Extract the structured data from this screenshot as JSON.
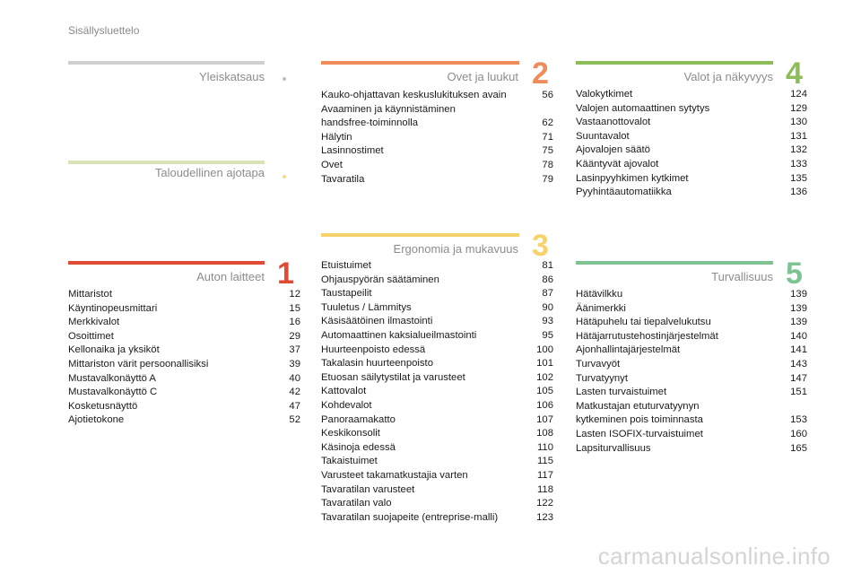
{
  "header": {
    "title": "Sisällysluettelo"
  },
  "colors": {
    "grey": "#d0d0d0",
    "light_green": "#d7e3b4",
    "red": "#e14a34",
    "orange": "#f08b5a",
    "yellow": "#f6d36a",
    "green": "#8ebc5a",
    "teal_green": "#7dc393",
    "bullet_grey": "#bdbdbd",
    "bullet_yellow": "#f2dc8a"
  },
  "sections": {
    "yleiskatsaus": {
      "title": "Yleiskatsaus"
    },
    "taloudellinen": {
      "title": "Taloudellinen ajotapa"
    },
    "auton_laitteet": {
      "title": "Auton laitteet",
      "number": "1",
      "entries": [
        {
          "label": "Mittaristot",
          "page": "12"
        },
        {
          "label": "Käyntinopeusmittari",
          "page": "15"
        },
        {
          "label": "Merkkivalot",
          "page": "16"
        },
        {
          "label": "Osoittimet",
          "page": "29"
        },
        {
          "label": "Kellonaika ja yksiköt",
          "page": "37"
        },
        {
          "label": "Mittariston värit persoonallisiksi",
          "page": "39"
        },
        {
          "label": "Mustavalkonäyttö A",
          "page": "40"
        },
        {
          "label": "Mustavalkonäyttö C",
          "page": "42"
        },
        {
          "label": "Kosketusnäyttö",
          "page": "47"
        },
        {
          "label": "Ajotietokone",
          "page": "52"
        }
      ]
    },
    "ovet": {
      "title": "Ovet ja luukut",
      "number": "2",
      "entries": [
        {
          "label": "Kauko-ohjattavan keskuslukituksen avain",
          "page": "56"
        },
        {
          "label": "Avaaminen ja käynnistäminen\n   handsfree-toiminnolla",
          "page": "62"
        },
        {
          "label": "Hälytin",
          "page": "71"
        },
        {
          "label": "Lasinnostimet",
          "page": "75"
        },
        {
          "label": "Ovet",
          "page": "78"
        },
        {
          "label": "Tavaratila",
          "page": "79"
        }
      ]
    },
    "ergonomia": {
      "title": "Ergonomia ja mukavuus",
      "number": "3",
      "entries": [
        {
          "label": "Etuistuimet",
          "page": "81"
        },
        {
          "label": "Ohjauspyörän säätäminen",
          "page": "86"
        },
        {
          "label": "Taustapeilit",
          "page": "87"
        },
        {
          "label": "Tuuletus / Lämmitys",
          "page": "90"
        },
        {
          "label": "Käsisäätöinen ilmastointi",
          "page": "93"
        },
        {
          "label": "Automaattinen kaksialueilmastointi",
          "page": "95"
        },
        {
          "label": "Huurteenpoisto edessä",
          "page": "100"
        },
        {
          "label": "Takalasin huurteenpoisto",
          "page": "101"
        },
        {
          "label": "Etuosan säilytystilat ja varusteet",
          "page": "102"
        },
        {
          "label": "Kattovalot",
          "page": "105"
        },
        {
          "label": "Kohdevalot",
          "page": "106"
        },
        {
          "label": "Panoraamakatto",
          "page": "107"
        },
        {
          "label": "Keskikonsolit",
          "page": "108"
        },
        {
          "label": "Käsinoja edessä",
          "page": "110"
        },
        {
          "label": "Takaistuimet",
          "page": "115"
        },
        {
          "label": "Varusteet takamatkustajia varten",
          "page": "117"
        },
        {
          "label": "Tavaratilan varusteet",
          "page": "118"
        },
        {
          "label": "Tavaratilan valo",
          "page": "122"
        },
        {
          "label": "Tavaratilan suojapeite (entreprise-malli)",
          "page": "123"
        }
      ]
    },
    "valot": {
      "title": "Valot ja näkyvyys",
      "number": "4",
      "entries": [
        {
          "label": "Valokytkimet",
          "page": "124"
        },
        {
          "label": "Valojen automaattinen sytytys",
          "page": "129"
        },
        {
          "label": "Vastaanottovalot",
          "page": "130"
        },
        {
          "label": "Suuntavalot",
          "page": "131"
        },
        {
          "label": "Ajovalojen säätö",
          "page": "132"
        },
        {
          "label": "Kääntyvät ajovalot",
          "page": "133"
        },
        {
          "label": "Lasinpyyhkimen kytkimet",
          "page": "135"
        },
        {
          "label": "Pyyhintäautomatiikka",
          "page": "136"
        }
      ]
    },
    "turvallisuus": {
      "title": "Turvallisuus",
      "number": "5",
      "entries": [
        {
          "label": "Hätävilkku",
          "page": "139"
        },
        {
          "label": "Äänimerkki",
          "page": "139"
        },
        {
          "label": "Hätäpuhelu tai tiepalvelukutsu",
          "page": "139"
        },
        {
          "label": "Hätäjarrutustehostinjärjestelmät",
          "page": "140"
        },
        {
          "label": "Ajonhallintajärjestelmät",
          "page": "141"
        },
        {
          "label": "Turvavyöt",
          "page": "143"
        },
        {
          "label": "Turvatyynyt",
          "page": "147"
        },
        {
          "label": "Lasten turvaistuimet",
          "page": "151"
        },
        {
          "label": "Matkustajan etuturvatyynyn\n   kytkeminen pois toiminnasta",
          "page": "153"
        },
        {
          "label": "Lasten ISOFIX-turvaistuimet",
          "page": "160"
        },
        {
          "label": "Lapsiturvallisuus",
          "page": "165"
        }
      ]
    }
  },
  "watermark": {
    "text": "carmanualsonline.info"
  }
}
